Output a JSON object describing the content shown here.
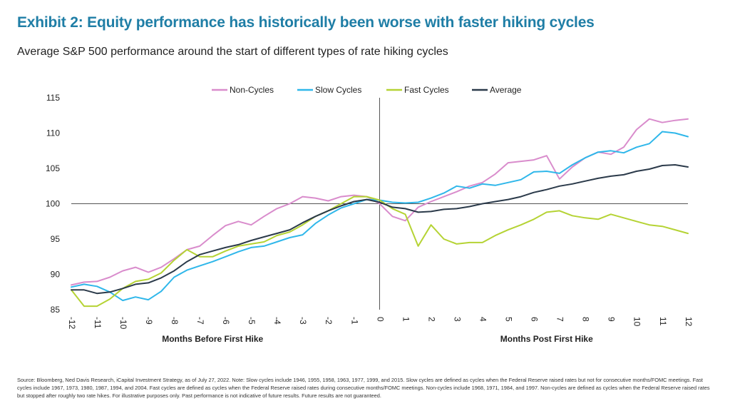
{
  "header": {
    "title": "Exhibit 2: Equity performance has historically been worse with faster hiking cycles",
    "subtitle": "Average S&P 500 performance around the start of different types of rate hiking cycles"
  },
  "footnote": "Source: Bloomberg, Ned Davis Research, iCapital Investment Strategy, as of July 27, 2022. Note: Slow cycles include 1946, 1955, 1958, 1963, 1977, 1999, and 2015. Slow cycles are defined as cycles when the Federal Reserve raised rates but not for consecutive months/FOMC meetings. Fast cycles include 1967, 1973, 1980, 1987, 1994, and 2004. Fast cycles are defined as cycles when the Federal Reserve raised rates during consecutive months/FOMC meetings. Non-cycles include 1968, 1971, 1984, and 1997. Non-cycles are defined as cycles when the Federal Reserve raised rates but stopped after roughly two rate hikes. For illustrative purposes only. Past performance is not indicative of future results. Future results are not guaranteed.",
  "chart_data": {
    "type": "line",
    "title": "Average S&P 500 performance around the start of different types of rate hiking cycles",
    "xlabel_left": "Months Before First Hike",
    "xlabel_right": "Months Post First Hike",
    "ylabel": "",
    "xlim": [
      -12,
      12
    ],
    "ylim": [
      85,
      115
    ],
    "x_ticks": [
      -12,
      -11,
      -10,
      -9,
      -8,
      -7,
      -6,
      -5,
      -4,
      -3,
      -2,
      -1,
      0,
      1,
      2,
      3,
      4,
      5,
      6,
      7,
      8,
      9,
      10,
      11,
      12
    ],
    "y_ticks": [
      85,
      90,
      95,
      100,
      105,
      110,
      115
    ],
    "reference_line_y": 100,
    "reference_line_x": 0,
    "legend_position": "top-center",
    "x": [
      -12,
      -11.5,
      -11,
      -10.5,
      -10,
      -9.5,
      -9,
      -8.5,
      -8,
      -7.5,
      -7,
      -6.5,
      -6,
      -5.5,
      -5,
      -4.5,
      -4,
      -3.5,
      -3,
      -2.5,
      -2,
      -1.5,
      -1,
      -0.5,
      0,
      0.5,
      1,
      1.5,
      2,
      2.5,
      3,
      3.5,
      4,
      4.5,
      5,
      5.5,
      6,
      6.5,
      7,
      7.5,
      8,
      8.5,
      9,
      9.5,
      10,
      10.5,
      11,
      11.5,
      12
    ],
    "series": [
      {
        "name": "Non-Cycles",
        "color": "#d98ccc",
        "values": [
          88.5,
          88.9,
          89.0,
          89.6,
          90.5,
          91.0,
          90.3,
          91.0,
          92.2,
          93.5,
          94.0,
          95.5,
          96.9,
          97.5,
          97.0,
          98.2,
          99.3,
          100.0,
          101.0,
          100.8,
          100.4,
          101.0,
          101.2,
          101.0,
          100.0,
          98.2,
          97.6,
          99.5,
          100.3,
          101.0,
          101.7,
          102.5,
          103.0,
          104.2,
          105.8,
          106.0,
          106.2,
          106.8,
          103.5,
          105.2,
          106.5,
          107.3,
          107.0,
          108.0,
          110.5,
          112.0,
          111.5,
          111.8,
          112.0
        ]
      },
      {
        "name": "Slow Cycles",
        "color": "#2fb7ea",
        "values": [
          88.2,
          88.6,
          88.3,
          87.5,
          86.3,
          86.8,
          86.4,
          87.6,
          89.6,
          90.6,
          91.2,
          91.8,
          92.5,
          93.2,
          93.8,
          94.0,
          94.6,
          95.2,
          95.6,
          97.2,
          98.4,
          99.4,
          100.0,
          100.6,
          100.5,
          100.2,
          100.1,
          100.2,
          100.8,
          101.5,
          102.5,
          102.2,
          102.8,
          102.6,
          103.0,
          103.4,
          104.5,
          104.6,
          104.3,
          105.5,
          106.5,
          107.3,
          107.5,
          107.2,
          108.0,
          108.5,
          110.2,
          110.0,
          109.5
        ]
      },
      {
        "name": "Fast Cycles",
        "color": "#b5d334",
        "values": [
          87.8,
          85.5,
          85.5,
          86.5,
          88.0,
          89.0,
          89.3,
          90.2,
          92.0,
          93.5,
          92.5,
          92.5,
          93.3,
          94.0,
          94.3,
          94.6,
          95.5,
          96.0,
          97.0,
          98.2,
          99.0,
          100.0,
          101.0,
          101.0,
          100.5,
          99.3,
          98.5,
          94.0,
          97.0,
          95.0,
          94.3,
          94.5,
          94.5,
          95.5,
          96.3,
          97.0,
          97.8,
          98.8,
          99.0,
          98.3,
          98.0,
          97.8,
          98.5,
          98.0,
          97.5,
          97.0,
          96.8,
          96.3,
          95.8
        ]
      },
      {
        "name": "Average",
        "color": "#2b3a4a",
        "values": [
          87.8,
          87.8,
          87.3,
          87.5,
          88.0,
          88.6,
          88.8,
          89.5,
          90.5,
          91.8,
          92.8,
          93.3,
          93.8,
          94.2,
          94.8,
          95.3,
          95.8,
          96.3,
          97.3,
          98.2,
          99.0,
          99.7,
          100.3,
          100.6,
          100.2,
          99.5,
          99.3,
          98.8,
          98.9,
          99.2,
          99.3,
          99.6,
          100.0,
          100.3,
          100.6,
          101.0,
          101.6,
          102.0,
          102.5,
          102.8,
          103.2,
          103.6,
          103.9,
          104.1,
          104.6,
          104.9,
          105.4,
          105.5,
          105.2
        ]
      }
    ]
  }
}
